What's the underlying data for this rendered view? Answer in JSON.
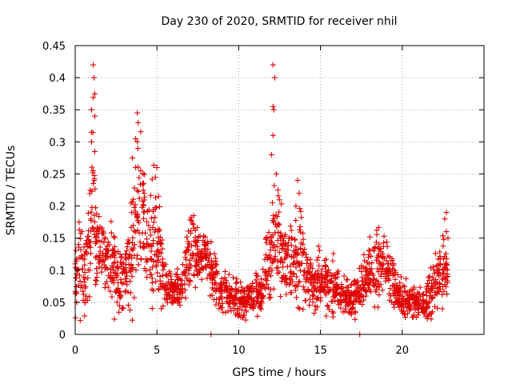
{
  "chart_data": {
    "type": "scatter",
    "title": "Day 230 of 2020, SRMTID for receiver nhil",
    "xlabel": "GPS time / hours",
    "ylabel": "SRMTID / TECUs",
    "xlim": [
      0,
      25
    ],
    "ylim": [
      0,
      0.45
    ],
    "xticks": [
      0,
      5,
      10,
      15,
      20
    ],
    "xtick_labels": [
      "0",
      "5",
      "10",
      "15",
      "20"
    ],
    "yticks": [
      0,
      0.05,
      0.1,
      0.15,
      0.2,
      0.25,
      0.3,
      0.35,
      0.4,
      0.45
    ],
    "ytick_labels": [
      "0",
      "0.05",
      "0.1",
      "0.15",
      "0.2",
      "0.25",
      "0.3",
      "0.35",
      "0.4",
      "0.45"
    ],
    "grid": true,
    "marker": "+",
    "color": "#e00000",
    "series": [
      {
        "name": "SRMTID",
        "trend": [
          [
            0.0,
            0.08,
            0.03
          ],
          [
            0.3,
            0.12,
            0.05
          ],
          [
            0.6,
            0.09,
            0.04
          ],
          [
            0.9,
            0.15,
            0.06
          ],
          [
            1.1,
            0.2,
            0.1
          ],
          [
            1.3,
            0.14,
            0.05
          ],
          [
            1.6,
            0.13,
            0.04
          ],
          [
            2.0,
            0.11,
            0.04
          ],
          [
            2.4,
            0.1,
            0.04
          ],
          [
            2.8,
            0.08,
            0.03
          ],
          [
            3.2,
            0.1,
            0.04
          ],
          [
            3.6,
            0.16,
            0.06
          ],
          [
            4.0,
            0.2,
            0.08
          ],
          [
            4.4,
            0.15,
            0.05
          ],
          [
            4.8,
            0.16,
            0.06
          ],
          [
            5.2,
            0.12,
            0.05
          ],
          [
            5.6,
            0.07,
            0.02
          ],
          [
            6.0,
            0.07,
            0.02
          ],
          [
            6.5,
            0.07,
            0.02
          ],
          [
            7.0,
            0.13,
            0.04
          ],
          [
            7.5,
            0.12,
            0.03
          ],
          [
            8.0,
            0.12,
            0.03
          ],
          [
            8.4,
            0.09,
            0.03
          ],
          [
            8.8,
            0.07,
            0.03
          ],
          [
            9.5,
            0.06,
            0.02
          ],
          [
            10.2,
            0.05,
            0.02
          ],
          [
            10.8,
            0.06,
            0.02
          ],
          [
            11.3,
            0.06,
            0.02
          ],
          [
            11.7,
            0.1,
            0.04
          ],
          [
            12.0,
            0.14,
            0.05
          ],
          [
            12.4,
            0.15,
            0.06
          ],
          [
            12.8,
            0.11,
            0.04
          ],
          [
            13.2,
            0.1,
            0.04
          ],
          [
            13.7,
            0.13,
            0.05
          ],
          [
            14.2,
            0.09,
            0.03
          ],
          [
            14.8,
            0.08,
            0.03
          ],
          [
            15.3,
            0.08,
            0.03
          ],
          [
            15.8,
            0.07,
            0.03
          ],
          [
            16.3,
            0.06,
            0.02
          ],
          [
            16.8,
            0.06,
            0.02
          ],
          [
            17.3,
            0.07,
            0.02
          ],
          [
            17.8,
            0.09,
            0.03
          ],
          [
            18.3,
            0.1,
            0.04
          ],
          [
            18.8,
            0.12,
            0.04
          ],
          [
            19.3,
            0.08,
            0.03
          ],
          [
            19.8,
            0.06,
            0.02
          ],
          [
            20.3,
            0.05,
            0.02
          ],
          [
            20.8,
            0.05,
            0.02
          ],
          [
            21.3,
            0.05,
            0.02
          ],
          [
            21.8,
            0.07,
            0.03
          ],
          [
            22.2,
            0.09,
            0.04
          ],
          [
            22.6,
            0.1,
            0.04
          ],
          [
            22.8,
            0.09,
            0.03
          ]
        ],
        "spikes": [
          [
            1.0,
            0.35
          ],
          [
            1.1,
            0.42
          ],
          [
            1.15,
            0.4
          ],
          [
            1.2,
            0.375
          ],
          [
            1.2,
            0.34
          ],
          [
            1.0,
            0.315
          ],
          [
            1.2,
            0.285
          ],
          [
            1.1,
            0.255
          ],
          [
            1.1,
            0.235
          ],
          [
            1.0,
            0.3
          ],
          [
            3.5,
            0.275
          ],
          [
            3.8,
            0.345
          ],
          [
            3.85,
            0.33
          ],
          [
            3.8,
            0.3
          ],
          [
            4.0,
            0.255
          ],
          [
            3.7,
            0.26
          ],
          [
            5.0,
            0.26
          ],
          [
            5.1,
            0.215
          ],
          [
            4.9,
            0.245
          ],
          [
            12.1,
            0.42
          ],
          [
            12.2,
            0.4
          ],
          [
            12.1,
            0.355
          ],
          [
            12.15,
            0.35
          ],
          [
            12.1,
            0.31
          ],
          [
            12.3,
            0.25
          ],
          [
            12.4,
            0.225
          ],
          [
            12.0,
            0.28
          ],
          [
            13.6,
            0.24
          ],
          [
            13.7,
            0.22
          ],
          [
            13.5,
            0.2
          ],
          [
            22.7,
            0.19
          ],
          [
            22.6,
            0.18
          ],
          [
            22.7,
            0.16
          ],
          [
            22.8,
            0.15
          ]
        ],
        "zero_points": [
          [
            8.3,
            0.0
          ],
          [
            17.4,
            0.0
          ]
        ]
      }
    ]
  }
}
